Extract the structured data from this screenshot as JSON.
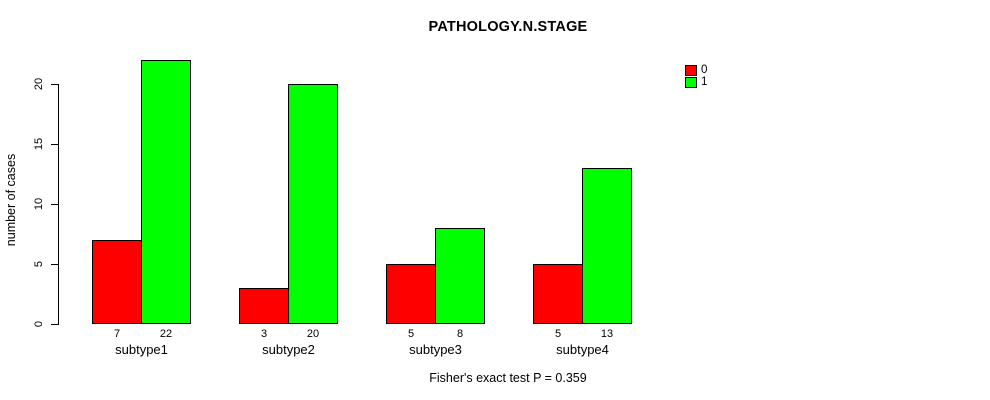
{
  "chart_data": {
    "type": "bar",
    "title": "PATHOLOGY.N.STAGE",
    "categories": [
      "subtype1",
      "subtype2",
      "subtype3",
      "subtype4"
    ],
    "series": [
      {
        "name": "0",
        "color": "#ff0000",
        "values": [
          7,
          3,
          5,
          5
        ]
      },
      {
        "name": "1",
        "color": "#00ff00",
        "values": [
          22,
          20,
          8,
          13
        ]
      }
    ],
    "bar_value_labels": {
      "series_0": [
        "7",
        "3",
        "5",
        "5"
      ],
      "series_1": [
        "22",
        "20",
        "8",
        "13"
      ]
    },
    "xlabel": "",
    "ylabel": "number of cases",
    "yticks": [
      0,
      5,
      10,
      15,
      20
    ],
    "ylim": [
      0,
      22
    ],
    "grid": false,
    "legend_position": "top-right",
    "legend_items": [
      {
        "label": "0",
        "color": "#ff0000"
      },
      {
        "label": "1",
        "color": "#00ff00"
      }
    ],
    "annotation": "Fisher's exact test P = 0.359"
  },
  "colors": {
    "series0": "#ff0000",
    "series1": "#00ff00",
    "axis": "#000000",
    "background": "#ffffff"
  }
}
